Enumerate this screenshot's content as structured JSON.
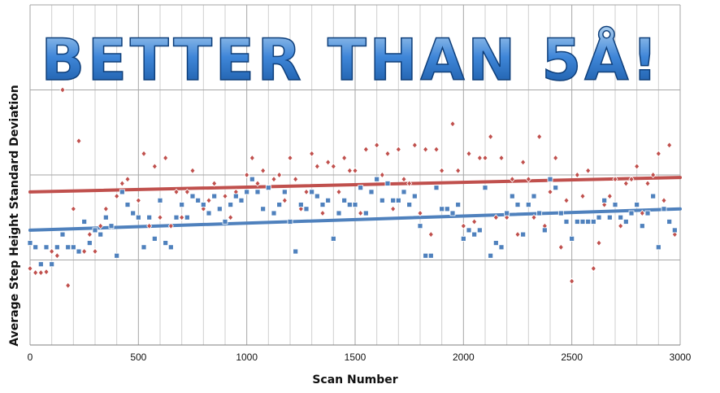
{
  "banner": "BETTER THAN 5Å!",
  "chart_data": {
    "type": "scatter",
    "title": "",
    "xlabel": "Scan Number",
    "ylabel": "Average  Step Height Standard Deviation",
    "xlim": [
      0,
      3000
    ],
    "ylim": [
      0,
      4
    ],
    "xticks": [
      "0",
      "500",
      "1000",
      "1500",
      "2000",
      "2500",
      "3000"
    ],
    "yticks_labeled": false,
    "grid": true,
    "legend": "none",
    "series": [
      {
        "color": "#c0504d",
        "marker": "diamond",
        "trendline": [
          [
            0,
            1.8
          ],
          [
            3000,
            1.97
          ]
        ],
        "x": [
          0,
          25,
          50,
          75,
          100,
          125,
          150,
          175,
          200,
          225,
          250,
          275,
          300,
          325,
          350,
          375,
          400,
          425,
          450,
          475,
          500,
          525,
          550,
          575,
          600,
          625,
          650,
          675,
          700,
          725,
          750,
          775,
          800,
          825,
          850,
          875,
          900,
          925,
          950,
          975,
          1000,
          1025,
          1050,
          1075,
          1100,
          1125,
          1150,
          1175,
          1200,
          1225,
          1250,
          1275,
          1300,
          1325,
          1350,
          1375,
          1400,
          1425,
          1450,
          1475,
          1500,
          1525,
          1550,
          1575,
          1600,
          1625,
          1650,
          1675,
          1700,
          1725,
          1750,
          1775,
          1800,
          1825,
          1850,
          1875,
          1900,
          1925,
          1950,
          1975,
          2000,
          2025,
          2050,
          2075,
          2100,
          2125,
          2150,
          2175,
          2200,
          2225,
          2250,
          2275,
          2300,
          2325,
          2350,
          2375,
          2400,
          2425,
          2450,
          2475,
          2500,
          2525,
          2550,
          2575,
          2600,
          2625,
          2650,
          2675,
          2700,
          2725,
          2750,
          2775,
          2800,
          2825,
          2850,
          2875,
          2900,
          2925,
          2950,
          2975
        ],
        "y": [
          0.9,
          0.85,
          0.85,
          0.86,
          1.1,
          1.05,
          3.0,
          0.7,
          1.6,
          2.4,
          1.1,
          1.3,
          1.1,
          1.4,
          1.6,
          1.4,
          1.75,
          1.9,
          1.95,
          1.55,
          1.7,
          2.25,
          1.4,
          2.1,
          1.5,
          2.2,
          1.4,
          1.8,
          1.5,
          1.8,
          2.05,
          1.7,
          1.6,
          1.7,
          1.9,
          1.6,
          1.75,
          1.5,
          1.8,
          1.7,
          2.0,
          2.2,
          1.9,
          2.05,
          1.85,
          1.95,
          2.0,
          1.7,
          2.2,
          1.95,
          1.6,
          1.8,
          2.25,
          2.1,
          1.55,
          2.15,
          2.1,
          1.8,
          2.2,
          2.05,
          2.05,
          1.55,
          2.3,
          1.8,
          2.35,
          2.0,
          2.25,
          1.6,
          2.3,
          1.95,
          1.9,
          2.35,
          1.55,
          2.3,
          1.3,
          2.3,
          2.05,
          1.6,
          2.6,
          2.05,
          1.4,
          2.25,
          1.45,
          2.2,
          2.2,
          2.45,
          1.5,
          2.2,
          1.5,
          1.95,
          1.3,
          2.15,
          1.95,
          1.5,
          2.45,
          1.4,
          1.8,
          2.2,
          1.15,
          1.7,
          0.75,
          2.0,
          1.75,
          2.05,
          0.9,
          1.2,
          1.65,
          1.75,
          1.95,
          1.4,
          1.9,
          1.95,
          2.1,
          1.55,
          1.9,
          2.0,
          2.25,
          1.7,
          2.35,
          1.3
        ]
      },
      {
        "color": "#4f81bd",
        "marker": "square",
        "trendline": [
          [
            0,
            1.35
          ],
          [
            3000,
            1.6
          ]
        ],
        "x": [
          0,
          25,
          50,
          75,
          100,
          125,
          150,
          175,
          200,
          225,
          250,
          275,
          300,
          325,
          350,
          375,
          400,
          425,
          450,
          475,
          500,
          525,
          550,
          575,
          600,
          625,
          650,
          675,
          700,
          725,
          750,
          775,
          800,
          825,
          850,
          875,
          900,
          925,
          950,
          975,
          1000,
          1025,
          1050,
          1075,
          1100,
          1125,
          1150,
          1175,
          1200,
          1225,
          1250,
          1275,
          1300,
          1325,
          1350,
          1375,
          1400,
          1425,
          1450,
          1475,
          1500,
          1525,
          1550,
          1575,
          1600,
          1625,
          1650,
          1675,
          1700,
          1725,
          1750,
          1775,
          1800,
          1825,
          1850,
          1875,
          1900,
          1925,
          1950,
          1975,
          2000,
          2025,
          2050,
          2075,
          2100,
          2125,
          2150,
          2175,
          2200,
          2225,
          2250,
          2275,
          2300,
          2325,
          2350,
          2375,
          2400,
          2425,
          2450,
          2475,
          2500,
          2525,
          2550,
          2575,
          2600,
          2625,
          2650,
          2675,
          2700,
          2725,
          2750,
          2775,
          2800,
          2825,
          2850,
          2875,
          2900,
          2925,
          2950,
          2975
        ],
        "y": [
          1.2,
          1.15,
          0.95,
          1.15,
          0.95,
          1.15,
          1.3,
          1.15,
          1.15,
          1.1,
          1.45,
          1.2,
          1.35,
          1.3,
          1.5,
          1.4,
          1.05,
          1.8,
          1.65,
          1.55,
          1.5,
          1.15,
          1.5,
          1.25,
          1.7,
          1.2,
          1.15,
          1.5,
          1.65,
          1.5,
          1.75,
          1.7,
          1.65,
          1.55,
          1.75,
          1.6,
          1.45,
          1.65,
          1.75,
          1.7,
          1.8,
          1.95,
          1.8,
          1.6,
          1.85,
          1.55,
          1.65,
          1.8,
          1.45,
          1.1,
          1.65,
          1.6,
          1.8,
          1.75,
          1.65,
          1.7,
          1.25,
          1.55,
          1.7,
          1.65,
          1.65,
          1.85,
          1.55,
          1.8,
          1.95,
          1.7,
          1.9,
          1.7,
          1.7,
          1.8,
          1.65,
          1.75,
          1.4,
          1.05,
          1.05,
          1.85,
          1.6,
          1.6,
          1.55,
          1.65,
          1.25,
          1.35,
          1.3,
          1.35,
          1.85,
          1.05,
          1.2,
          1.15,
          1.55,
          1.75,
          1.65,
          1.3,
          1.65,
          1.75,
          1.55,
          1.35,
          1.95,
          1.85,
          1.55,
          1.45,
          1.25,
          1.45,
          1.45,
          1.45,
          1.45,
          1.5,
          1.7,
          1.5,
          1.65,
          1.5,
          1.45,
          1.55,
          1.65,
          1.4,
          1.55,
          1.75,
          1.15,
          1.6,
          1.45,
          1.35
        ]
      }
    ]
  }
}
